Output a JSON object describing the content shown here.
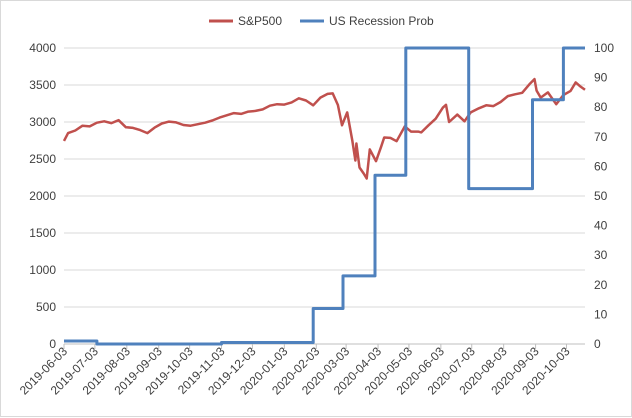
{
  "chart_data": {
    "type": "line",
    "title": "",
    "legend": {
      "placement": "top-center",
      "entries": [
        "S&P500",
        "US Recession Prob"
      ]
    },
    "grid": {
      "horizontal": true,
      "vertical": false
    },
    "x_axis": {
      "tick_labels": [
        "2019-06-03",
        "2019-07-03",
        "2019-08-03",
        "2019-09-03",
        "2019-10-03",
        "2019-11-03",
        "2019-12-03",
        "2020-01-03",
        "2020-02-03",
        "2020-03-03",
        "2020-04-03",
        "2020-05-03",
        "2020-06-03",
        "2020-07-03",
        "2020-08-03",
        "2020-09-03",
        "2020-10-03"
      ],
      "range": [
        "2019-06-03",
        "2020-10-21"
      ]
    },
    "y_left": {
      "ticks": [
        0,
        500,
        1000,
        1500,
        2000,
        2500,
        3000,
        3500,
        4000
      ],
      "range": [
        0,
        4000
      ]
    },
    "y_right": {
      "ticks": [
        0,
        10,
        20,
        30,
        40,
        50,
        60,
        70,
        80,
        90,
        100
      ],
      "range": [
        0,
        100
      ]
    },
    "series": [
      {
        "name": "S&P500",
        "color": "#c0504d",
        "axis": "left",
        "points": [
          [
            "2019-06-03",
            2745
          ],
          [
            "2019-06-07",
            2850
          ],
          [
            "2019-06-14",
            2885
          ],
          [
            "2019-06-21",
            2950
          ],
          [
            "2019-06-28",
            2940
          ],
          [
            "2019-07-05",
            2990
          ],
          [
            "2019-07-12",
            3010
          ],
          [
            "2019-07-19",
            2985
          ],
          [
            "2019-07-26",
            3025
          ],
          [
            "2019-08-02",
            2930
          ],
          [
            "2019-08-09",
            2920
          ],
          [
            "2019-08-16",
            2890
          ],
          [
            "2019-08-23",
            2850
          ],
          [
            "2019-08-30",
            2925
          ],
          [
            "2019-09-06",
            2980
          ],
          [
            "2019-09-13",
            3005
          ],
          [
            "2019-09-20",
            2995
          ],
          [
            "2019-09-27",
            2960
          ],
          [
            "2019-10-04",
            2950
          ],
          [
            "2019-10-11",
            2970
          ],
          [
            "2019-10-18",
            2990
          ],
          [
            "2019-10-25",
            3020
          ],
          [
            "2019-11-01",
            3060
          ],
          [
            "2019-11-08",
            3090
          ],
          [
            "2019-11-15",
            3120
          ],
          [
            "2019-11-22",
            3110
          ],
          [
            "2019-11-29",
            3140
          ],
          [
            "2019-12-06",
            3150
          ],
          [
            "2019-12-13",
            3170
          ],
          [
            "2019-12-20",
            3220
          ],
          [
            "2019-12-27",
            3240
          ],
          [
            "2020-01-03",
            3235
          ],
          [
            "2020-01-10",
            3265
          ],
          [
            "2020-01-17",
            3320
          ],
          [
            "2020-01-24",
            3290
          ],
          [
            "2020-01-31",
            3225
          ],
          [
            "2020-02-07",
            3330
          ],
          [
            "2020-02-14",
            3380
          ],
          [
            "2020-02-19",
            3386
          ],
          [
            "2020-02-24",
            3230
          ],
          [
            "2020-02-28",
            2955
          ],
          [
            "2020-03-04",
            3130
          ],
          [
            "2020-03-09",
            2750
          ],
          [
            "2020-03-12",
            2480
          ],
          [
            "2020-03-13",
            2710
          ],
          [
            "2020-03-16",
            2385
          ],
          [
            "2020-03-20",
            2305
          ],
          [
            "2020-03-23",
            2237
          ],
          [
            "2020-03-26",
            2630
          ],
          [
            "2020-04-01",
            2470
          ],
          [
            "2020-04-06",
            2665
          ],
          [
            "2020-04-09",
            2790
          ],
          [
            "2020-04-15",
            2785
          ],
          [
            "2020-04-21",
            2740
          ],
          [
            "2020-04-29",
            2940
          ],
          [
            "2020-05-05",
            2870
          ],
          [
            "2020-05-12",
            2870
          ],
          [
            "2020-05-15",
            2860
          ],
          [
            "2020-05-22",
            2955
          ],
          [
            "2020-05-29",
            3045
          ],
          [
            "2020-06-05",
            3195
          ],
          [
            "2020-06-08",
            3232
          ],
          [
            "2020-06-11",
            3000
          ],
          [
            "2020-06-19",
            3100
          ],
          [
            "2020-06-26",
            3010
          ],
          [
            "2020-07-02",
            3130
          ],
          [
            "2020-07-10",
            3185
          ],
          [
            "2020-07-17",
            3225
          ],
          [
            "2020-07-24",
            3215
          ],
          [
            "2020-07-31",
            3270
          ],
          [
            "2020-08-07",
            3350
          ],
          [
            "2020-08-14",
            3375
          ],
          [
            "2020-08-21",
            3395
          ],
          [
            "2020-08-28",
            3510
          ],
          [
            "2020-09-02",
            3580
          ],
          [
            "2020-09-04",
            3425
          ],
          [
            "2020-09-08",
            3330
          ],
          [
            "2020-09-15",
            3400
          ],
          [
            "2020-09-23",
            3240
          ],
          [
            "2020-09-30",
            3365
          ],
          [
            "2020-10-07",
            3420
          ],
          [
            "2020-10-12",
            3535
          ],
          [
            "2020-10-16",
            3485
          ],
          [
            "2020-10-21",
            3435
          ]
        ]
      },
      {
        "name": "US Recession Prob",
        "color": "#4f81bd",
        "axis": "right",
        "step": true,
        "points": [
          [
            "2019-06-03",
            1
          ],
          [
            "2019-07-05",
            0
          ],
          [
            "2019-11-03",
            0.5
          ],
          [
            "2020-01-31",
            12
          ],
          [
            "2020-02-29",
            23
          ],
          [
            "2020-03-31",
            57
          ],
          [
            "2020-04-30",
            100
          ],
          [
            "2020-06-30",
            52.5
          ],
          [
            "2020-08-31",
            82.5
          ],
          [
            "2020-09-30",
            100
          ],
          [
            "2020-10-21",
            100
          ]
        ]
      }
    ]
  }
}
